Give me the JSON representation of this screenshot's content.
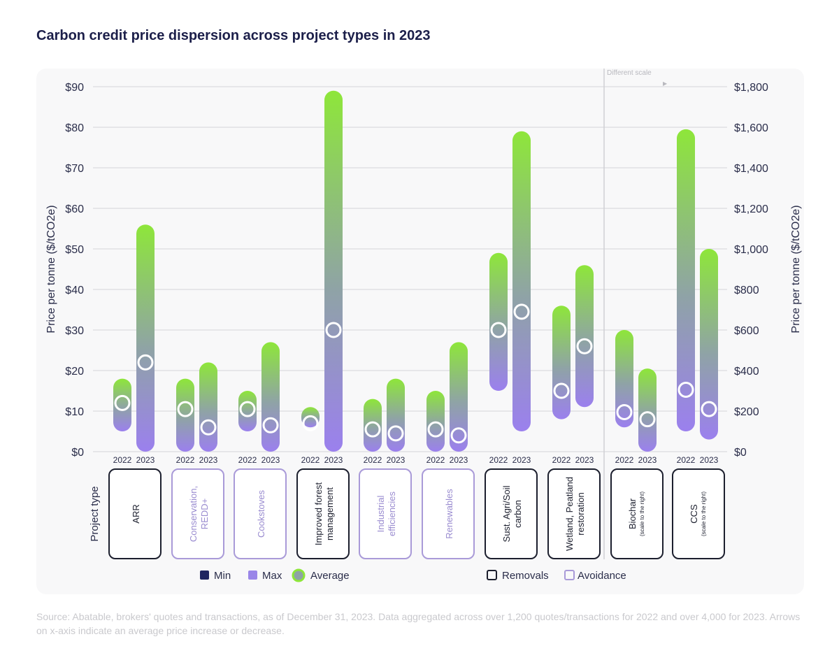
{
  "title": "Carbon credit price dispersion across project types in 2023",
  "chart_data": {
    "type": "bar",
    "subtype": "range-bar with average marker",
    "ylabel_left": "Price per tonne ($/tCO2e)",
    "ylabel_right": "Price per tonne ($/tCO2e)",
    "ylim_left": [
      0,
      90
    ],
    "ylim_right": [
      0,
      1800
    ],
    "yticks_left": [
      "$0",
      "$10",
      "$20",
      "$30",
      "$40",
      "$50",
      "$60",
      "$70",
      "$80",
      "$90"
    ],
    "yticks_right": [
      "$0",
      "$200",
      "$400",
      "$600",
      "$800",
      "$1,000",
      "$1,200",
      "$1,400",
      "$1,600",
      "$1,800"
    ],
    "grid": true,
    "xlabel": "Project type",
    "years": [
      "2022",
      "2023"
    ],
    "scale_note": "Different scale",
    "categories": [
      {
        "label": "ARR",
        "kind": "removals",
        "axis": "left",
        "values": [
          {
            "min": 5,
            "max": 18,
            "avg": 12
          },
          {
            "min": 0,
            "max": 56,
            "avg": 22
          }
        ]
      },
      {
        "label": "Conservation, REDD+",
        "kind": "avoidance",
        "axis": "left",
        "values": [
          {
            "min": 0,
            "max": 18,
            "avg": 10.5
          },
          {
            "min": 0,
            "max": 22,
            "avg": 6
          }
        ]
      },
      {
        "label": "Cookstoves",
        "kind": "avoidance",
        "axis": "left",
        "values": [
          {
            "min": 5,
            "max": 15,
            "avg": 10.5
          },
          {
            "min": 0,
            "max": 27,
            "avg": 6.5
          }
        ]
      },
      {
        "label": "Improved forest management",
        "kind": "removals",
        "axis": "left",
        "values": [
          {
            "min": 6,
            "max": 11,
            "avg": 7
          },
          {
            "min": 0,
            "max": 89,
            "avg": 30
          }
        ]
      },
      {
        "label": "Industrial efficiencies",
        "kind": "avoidance",
        "axis": "left",
        "values": [
          {
            "min": 0,
            "max": 13,
            "avg": 5.5
          },
          {
            "min": 0,
            "max": 18,
            "avg": 4.5
          }
        ]
      },
      {
        "label": "Renewables",
        "kind": "avoidance",
        "axis": "left",
        "values": [
          {
            "min": 0,
            "max": 15,
            "avg": 5.5
          },
          {
            "min": 0,
            "max": 27,
            "avg": 4
          }
        ]
      },
      {
        "label": "Sust. Agri/Soil carbon",
        "kind": "removals",
        "axis": "left",
        "values": [
          {
            "min": 15,
            "max": 49,
            "avg": 30
          },
          {
            "min": 5,
            "max": 79,
            "avg": 34.5
          }
        ]
      },
      {
        "label": "Wetland, Peatland restoration",
        "kind": "removals",
        "axis": "left",
        "values": [
          {
            "min": 8,
            "max": 36,
            "avg": 15
          },
          {
            "min": 11,
            "max": 46,
            "avg": 26
          }
        ]
      },
      {
        "label": "Biochar",
        "sublabel": "(scale to the right)",
        "kind": "removals",
        "axis": "right",
        "values": [
          {
            "min": 120,
            "max": 600,
            "avg": 195
          },
          {
            "min": 0,
            "max": 410,
            "avg": 160
          }
        ]
      },
      {
        "label": "CCS",
        "sublabel": "(scale to the right)",
        "kind": "removals",
        "axis": "right",
        "values": [
          {
            "min": 100,
            "max": 1590,
            "avg": 305
          },
          {
            "min": 60,
            "max": 1000,
            "avg": 210
          }
        ]
      }
    ],
    "legend": {
      "min": "Min",
      "max": "Max",
      "average": "Average",
      "removals": "Removals",
      "avoidance": "Avoidance"
    },
    "colors": {
      "min": "#1f2560",
      "max": "#9a86e8",
      "top": "#8ee63a",
      "bottom": "#9b80ee",
      "removals": "#1c1f2e",
      "avoidance": "#a99ad8",
      "grid": "#e0e0e4"
    }
  },
  "source": "Source: Abatable, brokers' quotes and transactions, as of December 31, 2023. Data aggregated across over 1,200 quotes/transactions for 2022 and over 4,000 for 2023. Arrows on x-axis indicate an average price increase or decrease."
}
